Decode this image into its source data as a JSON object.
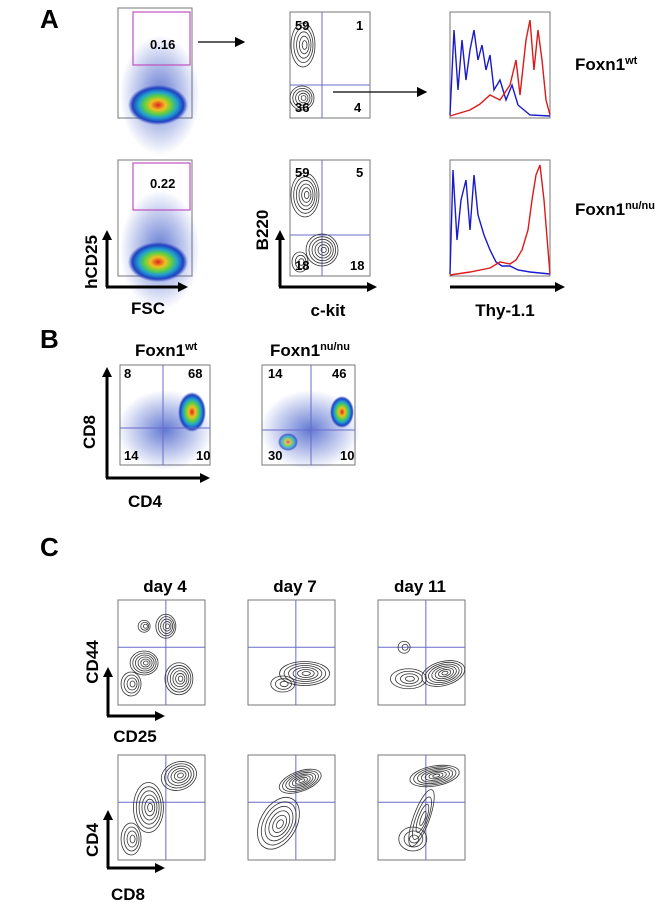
{
  "panel_a": {
    "label": "A",
    "rows": [
      {
        "gate": 0.16,
        "quadrants": [
          59,
          1,
          36,
          4
        ],
        "genotype": {
          "base": "Foxn1",
          "sup": "wt"
        }
      },
      {
        "gate": 0.22,
        "quadrants": [
          59,
          5,
          18,
          18
        ],
        "genotype": {
          "base": "Foxn1",
          "sup": "nu/nu"
        }
      }
    ],
    "axes": {
      "y1": "hCD25",
      "x1": "FSC",
      "y2": "B220",
      "x2": "c-kit",
      "x3": "Thy-1.1"
    }
  },
  "panel_b": {
    "label": "B",
    "plots": [
      {
        "genotype": {
          "base": "Foxn1",
          "sup": "wt"
        },
        "quadrants": [
          8,
          68,
          14,
          10
        ]
      },
      {
        "genotype": {
          "base": "Foxn1",
          "sup": "nu/nu"
        },
        "quadrants": [
          14,
          46,
          30,
          10
        ]
      }
    ],
    "y_axis": "CD8",
    "x_axis": "CD4"
  },
  "panel_c": {
    "label": "C",
    "days": [
      "day 4",
      "day 7",
      "day 11"
    ],
    "row1": {
      "y": "CD44",
      "x": "CD25"
    },
    "row2": {
      "y": "CD4",
      "x": "CD8"
    }
  }
}
